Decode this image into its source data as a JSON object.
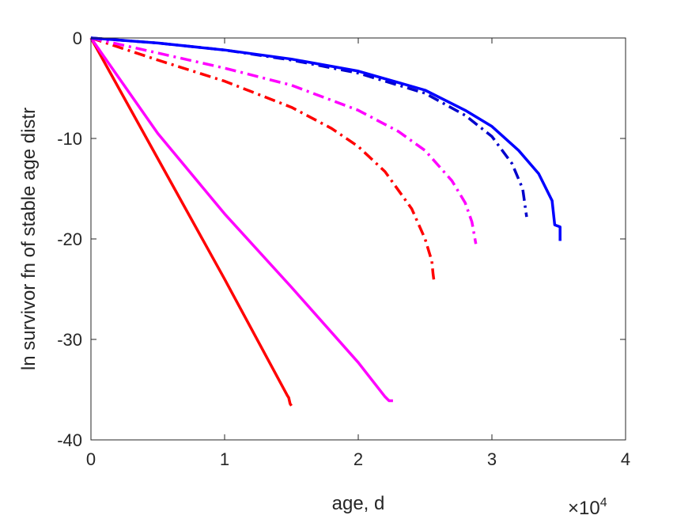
{
  "chart_data": {
    "type": "line",
    "title": "",
    "xlabel": "age, d",
    "ylabel": "ln survivor fn of stable age distr",
    "x_exponent_label": {
      "base": "×10",
      "exponent": "4"
    },
    "xlim": [
      0,
      40000
    ],
    "ylim": [
      -40,
      0
    ],
    "x_ticks": [
      0,
      10000,
      20000,
      30000,
      40000
    ],
    "x_tick_labels": [
      "0",
      "1",
      "2",
      "3",
      "4"
    ],
    "y_ticks": [
      0,
      -10,
      -20,
      -30,
      -40
    ],
    "y_tick_labels": [
      "0",
      "-10",
      "-20",
      "-30",
      "-40"
    ],
    "grid": false,
    "legend": "none",
    "series": [
      {
        "color": "#ff0000",
        "style": "solid",
        "x": [
          0,
          5000,
          10000,
          14700,
          14800,
          14900,
          15000
        ],
        "y": [
          0,
          -12,
          -24,
          -35.6,
          -35.8,
          -36.4,
          -36.6
        ]
      },
      {
        "color": "#ff00ff",
        "style": "solid",
        "x": [
          0,
          5000,
          10000,
          15000,
          20000,
          22000,
          22300,
          22600
        ],
        "y": [
          0,
          -9.5,
          -17.5,
          -24.8,
          -32.3,
          -35.7,
          -36.1,
          -36.1
        ]
      },
      {
        "color": "#ff0000",
        "style": "dashdot",
        "x": [
          0,
          5000,
          10000,
          15000,
          18000,
          20000,
          22000,
          24000,
          25000,
          25500,
          25600,
          25700
        ],
        "y": [
          0,
          -2.2,
          -4.3,
          -6.9,
          -9,
          -10.8,
          -13.3,
          -17,
          -20,
          -22.2,
          -23.5,
          -24.5
        ]
      },
      {
        "color": "#ff00ff",
        "style": "dashdot",
        "x": [
          0,
          5000,
          10000,
          15000,
          20000,
          23000,
          25000,
          27000,
          28000,
          28500,
          28800
        ],
        "y": [
          0,
          -1.5,
          -3,
          -4.7,
          -7.2,
          -9.3,
          -11.2,
          -14.2,
          -16.4,
          -18.3,
          -20.5
        ]
      },
      {
        "color": "#0000cc",
        "style": "dashdot",
        "x": [
          0,
          5000,
          10000,
          15000,
          20000,
          25000,
          28000,
          30000,
          31500,
          32300,
          32600
        ],
        "y": [
          0,
          -0.5,
          -1.2,
          -2.2,
          -3.5,
          -5.5,
          -7.7,
          -9.8,
          -12.5,
          -15,
          -17.8
        ]
      },
      {
        "color": "#0000ff",
        "style": "solid",
        "x": [
          0,
          5000,
          10000,
          15000,
          20000,
          25000,
          28000,
          30000,
          32000,
          33500,
          34500,
          34700,
          35100,
          35100
        ],
        "y": [
          0,
          -0.5,
          -1.2,
          -2.1,
          -3.3,
          -5.2,
          -7.2,
          -8.8,
          -11.2,
          -13.5,
          -16.2,
          -18.6,
          -18.8,
          -20.2
        ]
      }
    ]
  }
}
